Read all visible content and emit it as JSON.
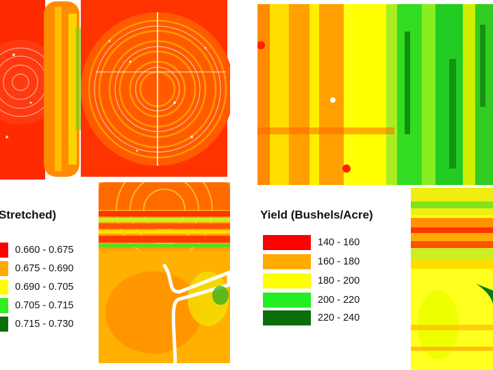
{
  "left_legend": {
    "title": "Stretched)",
    "items": [
      {
        "label": "0.660 - 0.675",
        "color": "#ff0000"
      },
      {
        "label": "0.675 - 0.690",
        "color": "#ffaa00"
      },
      {
        "label": "0.690 - 0.705",
        "color": "#ffff00"
      },
      {
        "label": "0.705 - 0.715",
        "color": "#33ee22"
      },
      {
        "label": "0.715 - 0.730",
        "color": "#0b6e0b"
      }
    ]
  },
  "right_legend": {
    "title": "Yield (Bushels/Acre)",
    "items": [
      {
        "label": "140 - 160",
        "color": "#ff0000"
      },
      {
        "label": "160 - 180",
        "color": "#ffaa00"
      },
      {
        "label": "180 - 200",
        "color": "#ffff00"
      },
      {
        "label": "200 - 220",
        "color": "#22ee22"
      },
      {
        "label": "220 - 240",
        "color": "#0b6e0b"
      }
    ]
  }
}
